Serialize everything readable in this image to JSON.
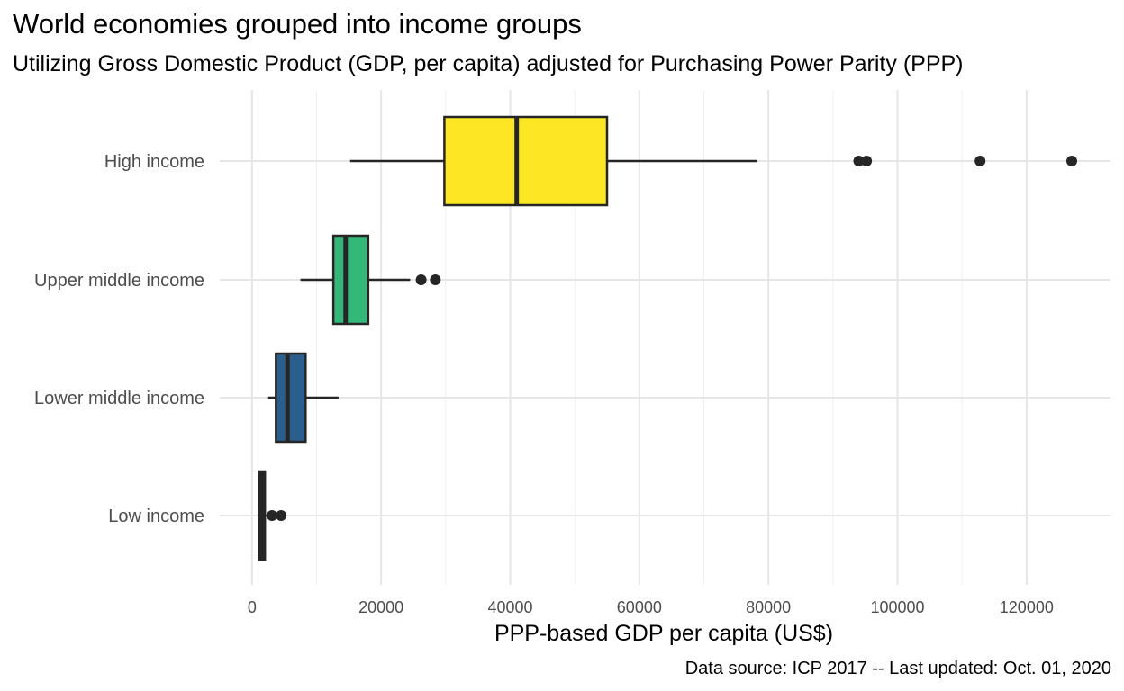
{
  "chart_data": {
    "type": "boxplot",
    "orientation": "horizontal",
    "title": "World economies grouped into income groups",
    "subtitle": "Utilizing Gross Domestic Product (GDP, per capita) adjusted for Purchasing Power Parity (PPP)",
    "caption": "Data source: ICP 2017 -- Last updated: Oct. 01, 2020",
    "xlabel": "PPP-based GDP per capita (US$)",
    "ylabel": "",
    "xlim": [
      -5000,
      133000
    ],
    "x_ticks": [
      0,
      20000,
      40000,
      60000,
      80000,
      100000,
      120000
    ],
    "x_tick_labels": [
      "0",
      "20000",
      "40000",
      "60000",
      "80000",
      "100000",
      "120000"
    ],
    "grid": true,
    "legend": "none",
    "categories": [
      "High income",
      "Upper middle income",
      "Lower middle income",
      "Low income"
    ],
    "series": [
      {
        "category": "High income",
        "color": "#fde725",
        "whisker_low": 15200,
        "q1": 29800,
        "median": 41000,
        "q3": 55000,
        "whisker_high": 78200,
        "outliers": [
          94000,
          95200,
          112800,
          127000
        ]
      },
      {
        "category": "Upper middle income",
        "color": "#35b779",
        "whisker_low": 7500,
        "q1": 12600,
        "median": 14500,
        "q3": 18000,
        "whisker_high": 24500,
        "outliers": [
          26200,
          28400
        ]
      },
      {
        "category": "Lower middle income",
        "color": "#2c5e8c",
        "whisker_low": 2500,
        "q1": 3700,
        "median": 5500,
        "q3": 8300,
        "whisker_high": 13400,
        "outliers": []
      },
      {
        "category": "Low income",
        "color": "#440154",
        "whisker_low": 900,
        "q1": 1100,
        "median": 1600,
        "q3": 2000,
        "whisker_high": 2400,
        "outliers": [
          3100,
          4500
        ]
      }
    ]
  }
}
